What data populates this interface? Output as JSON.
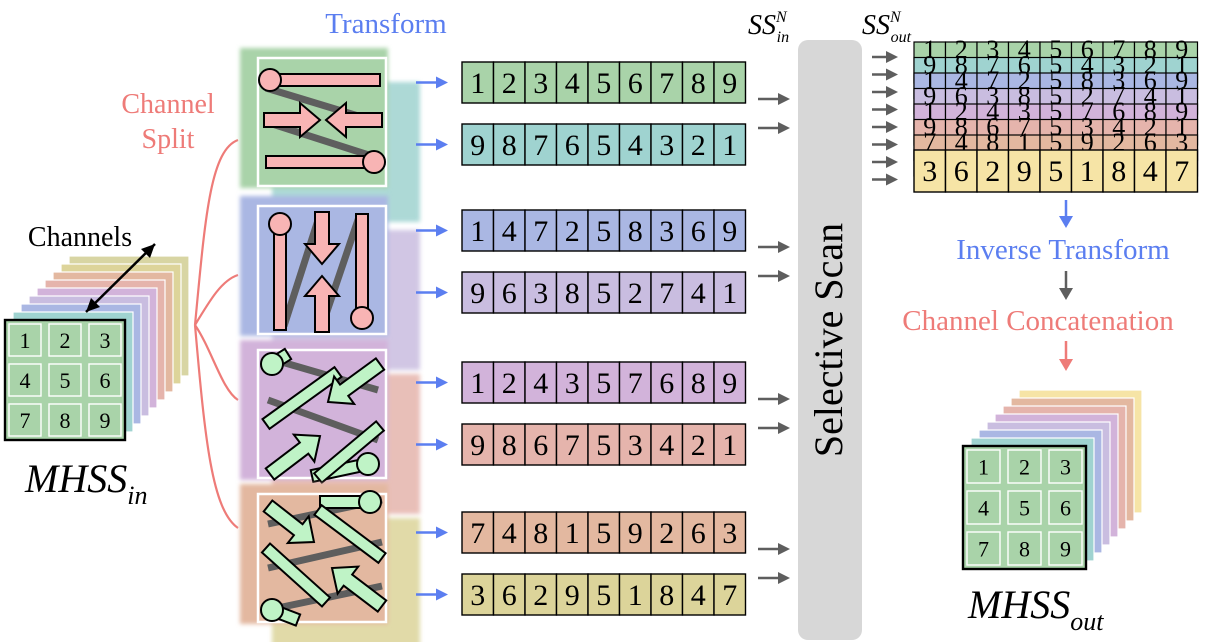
{
  "labels": {
    "transform": "Transform",
    "channel_split_1": "Channel",
    "channel_split_2": "Split",
    "channels": "Channels",
    "mhss_in_main": "MHSS",
    "mhss_in_sub": "in",
    "ss_in_main": "SS",
    "ss_in_sup": "N",
    "ss_in_sub": "in",
    "ss_out_main": "SS",
    "ss_out_sup": "N",
    "ss_out_sub": "out",
    "selective_scan": "Selective Scan",
    "inverse_transform": "Inverse Transform",
    "channel_concatenation": "Channel Concatenation",
    "mhss_out_main": "MHSS",
    "mhss_out_sub": "out"
  },
  "grid_values": [
    "1",
    "2",
    "3",
    "4",
    "5",
    "6",
    "7",
    "8",
    "9"
  ],
  "sequences": [
    {
      "values": [
        "1",
        "2",
        "3",
        "4",
        "5",
        "6",
        "7",
        "8",
        "9"
      ],
      "color": "#a9d3a9"
    },
    {
      "values": [
        "9",
        "8",
        "7",
        "6",
        "5",
        "4",
        "3",
        "2",
        "1"
      ],
      "color": "#9fd3d0"
    },
    {
      "values": [
        "1",
        "4",
        "7",
        "2",
        "5",
        "8",
        "3",
        "6",
        "9"
      ],
      "color": "#aab7e3"
    },
    {
      "values": [
        "9",
        "6",
        "3",
        "8",
        "5",
        "2",
        "7",
        "4",
        "1"
      ],
      "color": "#c9bde0"
    },
    {
      "values": [
        "1",
        "2",
        "4",
        "3",
        "5",
        "7",
        "6",
        "8",
        "9"
      ],
      "color": "#d2b3da"
    },
    {
      "values": [
        "9",
        "8",
        "6",
        "7",
        "5",
        "3",
        "4",
        "2",
        "1"
      ],
      "color": "#e5b4ac"
    },
    {
      "values": [
        "7",
        "4",
        "8",
        "1",
        "5",
        "9",
        "2",
        "6",
        "3"
      ],
      "color": "#e3b8a0"
    },
    {
      "values": [
        "3",
        "6",
        "2",
        "9",
        "5",
        "1",
        "8",
        "4",
        "7"
      ],
      "color": "#dcd49a"
    }
  ],
  "output_stack": {
    "top_values": [
      "3",
      "6",
      "2",
      "9",
      "5",
      "1",
      "8",
      "4",
      "7"
    ],
    "layer_colors": [
      "#a9d3a9",
      "#9fd3d0",
      "#aab7e3",
      "#c9bde0",
      "#d2b3da",
      "#e5b4ac",
      "#e3b8a0",
      "#f6e4a6"
    ]
  },
  "colors": {
    "blue_accent": "#5b7ef0",
    "pink_accent": "#ee7b78",
    "gray_arrow": "#5e5e5e",
    "scan_block": "#d7d7d7",
    "grid_green": "#a9d3a9",
    "arrow_pink_fill": "#f8b4b4",
    "arrow_green_fill": "#bff3c6"
  }
}
